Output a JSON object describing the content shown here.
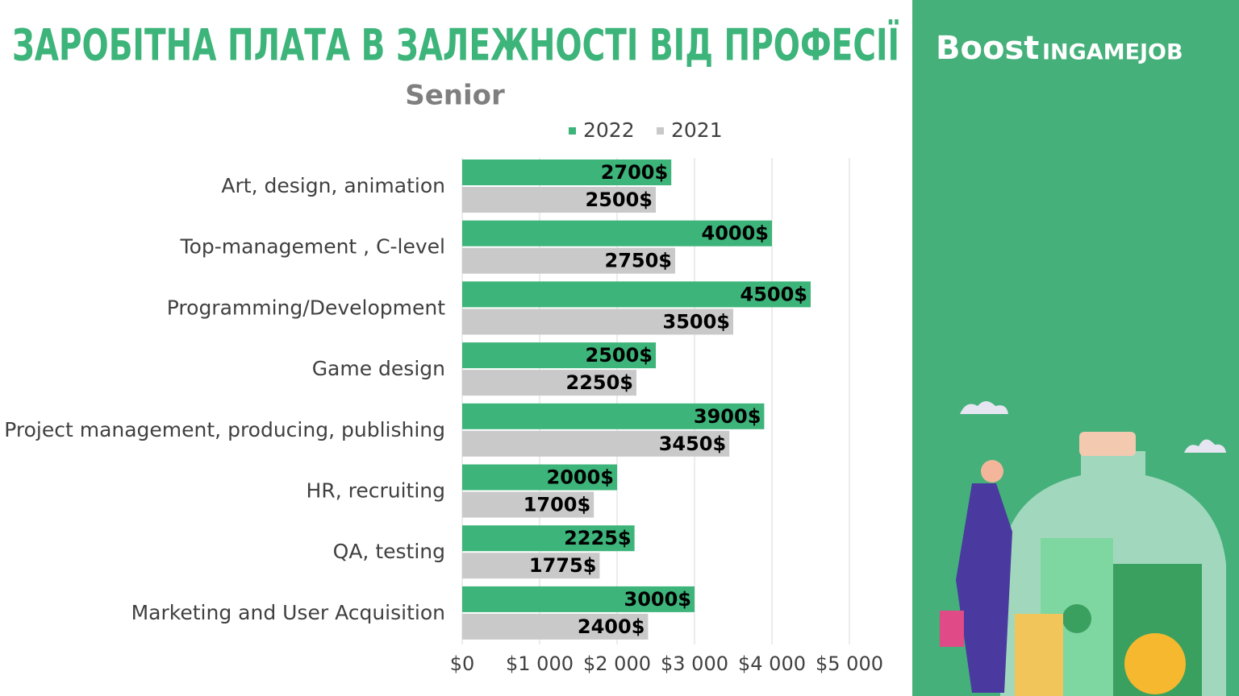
{
  "chart_data": {
    "type": "bar",
    "orientation": "horizontal",
    "title": "ЗАРОБІТНА ПЛАТА В ЗАЛЕЖНОСТІ ВІД ПРОФЕСІЇ",
    "subtitle": "Senior",
    "categories": [
      "Art, design, animation",
      "Top-management , C-level",
      "Programming/Development",
      "Game design",
      "Project management, producing, publishing",
      "HR, recruiting",
      "QA, testing",
      "Marketing and User Acquisition"
    ],
    "series": [
      {
        "name": "2022",
        "color": "#3db47a",
        "values": [
          2700,
          4000,
          4500,
          2500,
          3900,
          2000,
          2225,
          3000
        ],
        "value_labels": [
          "2700$",
          "4000$",
          "4500$",
          "2500$",
          "3900$",
          "2000$",
          "2225$",
          "3000$"
        ]
      },
      {
        "name": "2021",
        "color": "#c9c9c9",
        "values": [
          2500,
          2750,
          3500,
          2250,
          3450,
          1700,
          1775,
          2400
        ],
        "value_labels": [
          "2500$",
          "2750$",
          "3500$",
          "2250$",
          "3450$",
          "1700$",
          "1775$",
          "2400$"
        ]
      }
    ],
    "xlim": [
      0,
      5000
    ],
    "xticks": [
      {
        "value": 0,
        "label": "$0"
      },
      {
        "value": 1000,
        "label": "$1 000"
      },
      {
        "value": 2000,
        "label": "$2 000"
      },
      {
        "value": 3000,
        "label": "$3 000"
      },
      {
        "value": 4000,
        "label": "$4 000"
      },
      {
        "value": 5000,
        "label": "$5 000"
      }
    ],
    "grid": true,
    "legend": "top"
  },
  "brand": {
    "bold": "Boost",
    "rest": "INGAMEJOB"
  }
}
